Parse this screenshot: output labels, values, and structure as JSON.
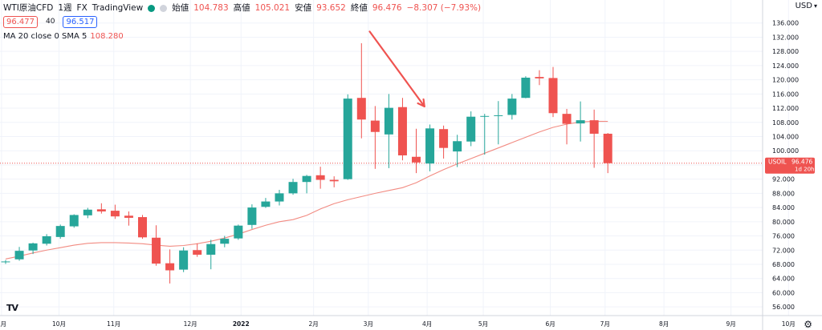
{
  "header": {
    "symbol": "WTI原油CFD",
    "interval": "1週",
    "exchange": "FX",
    "source": "TradingView",
    "ohlc": {
      "open_label": "始値",
      "open": "104.783",
      "high_label": "高値",
      "high": "105.021",
      "low_label": "安値",
      "low": "93.652",
      "close_label": "終値",
      "close": "96.476",
      "change": "−8.307 (−7.93%)"
    },
    "bid": "96.477",
    "spread": "40",
    "ask": "96.517",
    "indicator_label": "MA 20 close 0 SMA 5",
    "indicator_value": "108.280",
    "icons": [
      "eye-icon",
      "menu-icon"
    ]
  },
  "currency": "USD",
  "price_tag": {
    "symbol": "USOIL",
    "value": "96.476",
    "countdown": "1d 20h"
  },
  "colors": {
    "up": "#26a69a",
    "down": "#ef5350",
    "ma": "#f28b82",
    "arrow": "#ef5350"
  },
  "chart_data": {
    "type": "candlestick",
    "y_ticks": [
      "136.000",
      "132.000",
      "128.000",
      "124.000",
      "120.000",
      "116.000",
      "112.000",
      "108.000",
      "104.000",
      "100.000",
      "96.000",
      "92.000",
      "88.000",
      "84.000",
      "80.000",
      "76.000",
      "72.000",
      "68.000",
      "64.000",
      "60.000",
      "56.000"
    ],
    "ylim": [
      54,
      138
    ],
    "x_ticks": [
      {
        "label": "9月",
        "index": -0.3
      },
      {
        "label": "10月",
        "index": 3.9
      },
      {
        "label": "11月",
        "index": 7.9
      },
      {
        "label": "12月",
        "index": 13.5
      },
      {
        "label": "2022",
        "index": 17.2
      },
      {
        "label": "2月",
        "index": 22.5
      },
      {
        "label": "3月",
        "index": 26.5
      },
      {
        "label": "4月",
        "index": 30.8
      },
      {
        "label": "5月",
        "index": 34.9
      },
      {
        "label": "6月",
        "index": 39.8
      },
      {
        "label": "7月",
        "index": 43.8
      },
      {
        "label": "8月",
        "index": 48.1
      },
      {
        "label": "9月",
        "index": 53.0
      },
      {
        "label": "10月",
        "index": 57.2
      }
    ],
    "candles": [
      {
        "o": 68.7,
        "h": 69.2,
        "l": 68.1,
        "c": 68.8
      },
      {
        "o": 69.4,
        "h": 72.9,
        "l": 69.0,
        "c": 71.8
      },
      {
        "o": 71.9,
        "h": 74.1,
        "l": 70.9,
        "c": 73.9
      },
      {
        "o": 73.8,
        "h": 76.5,
        "l": 73.3,
        "c": 75.9
      },
      {
        "o": 75.7,
        "h": 79.2,
        "l": 75.2,
        "c": 78.8
      },
      {
        "o": 78.7,
        "h": 82.1,
        "l": 78.3,
        "c": 81.9
      },
      {
        "o": 81.8,
        "h": 83.9,
        "l": 81.0,
        "c": 83.4
      },
      {
        "o": 83.5,
        "h": 85.2,
        "l": 82.3,
        "c": 82.9
      },
      {
        "o": 83.1,
        "h": 84.8,
        "l": 80.8,
        "c": 81.5
      },
      {
        "o": 81.7,
        "h": 82.9,
        "l": 78.9,
        "c": 81.1
      },
      {
        "o": 81.3,
        "h": 81.9,
        "l": 75.2,
        "c": 75.6
      },
      {
        "o": 75.5,
        "h": 79.0,
        "l": 67.6,
        "c": 68.2
      },
      {
        "o": 68.3,
        "h": 72.2,
        "l": 62.6,
        "c": 66.3
      },
      {
        "o": 66.5,
        "h": 72.8,
        "l": 65.8,
        "c": 71.9
      },
      {
        "o": 72.0,
        "h": 73.9,
        "l": 70.1,
        "c": 70.7
      },
      {
        "o": 70.7,
        "h": 74.9,
        "l": 66.6,
        "c": 73.7
      },
      {
        "o": 73.8,
        "h": 76.0,
        "l": 72.8,
        "c": 75.2
      },
      {
        "o": 75.3,
        "h": 79.2,
        "l": 74.9,
        "c": 78.9
      },
      {
        "o": 79.1,
        "h": 84.9,
        "l": 78.0,
        "c": 84.0
      },
      {
        "o": 84.2,
        "h": 86.7,
        "l": 83.9,
        "c": 85.7
      },
      {
        "o": 85.7,
        "h": 89.0,
        "l": 84.6,
        "c": 88.0
      },
      {
        "o": 88.0,
        "h": 92.1,
        "l": 87.6,
        "c": 91.2
      },
      {
        "o": 91.2,
        "h": 93.2,
        "l": 88.0,
        "c": 92.9
      },
      {
        "o": 93.1,
        "h": 95.5,
        "l": 89.3,
        "c": 91.8
      },
      {
        "o": 91.8,
        "h": 92.8,
        "l": 89.7,
        "c": 91.4
      },
      {
        "o": 92.0,
        "h": 115.9,
        "l": 91.8,
        "c": 114.7
      },
      {
        "o": 114.9,
        "h": 130.3,
        "l": 103.5,
        "c": 108.8
      },
      {
        "o": 108.5,
        "h": 112.6,
        "l": 94.9,
        "c": 105.3
      },
      {
        "o": 104.6,
        "h": 116.0,
        "l": 95.1,
        "c": 112.1
      },
      {
        "o": 112.3,
        "h": 114.9,
        "l": 97.3,
        "c": 98.7
      },
      {
        "o": 98.3,
        "h": 106.2,
        "l": 93.7,
        "c": 96.7
      },
      {
        "o": 96.4,
        "h": 107.4,
        "l": 94.2,
        "c": 106.3
      },
      {
        "o": 106.1,
        "h": 107.1,
        "l": 97.8,
        "c": 100.8
      },
      {
        "o": 99.8,
        "h": 104.5,
        "l": 95.4,
        "c": 102.7
      },
      {
        "o": 102.6,
        "h": 111.1,
        "l": 101.3,
        "c": 109.6
      },
      {
        "o": 109.6,
        "h": 110.4,
        "l": 98.9,
        "c": 109.8
      },
      {
        "o": 109.9,
        "h": 114.0,
        "l": 101.8,
        "c": 110.0
      },
      {
        "o": 110.1,
        "h": 116.0,
        "l": 108.8,
        "c": 114.7
      },
      {
        "o": 114.9,
        "h": 121.0,
        "l": 114.8,
        "c": 120.6
      },
      {
        "o": 120.8,
        "h": 122.7,
        "l": 118.5,
        "c": 120.4
      },
      {
        "o": 120.5,
        "h": 123.6,
        "l": 109.5,
        "c": 110.6
      },
      {
        "o": 110.4,
        "h": 111.8,
        "l": 101.8,
        "c": 107.6
      },
      {
        "o": 107.7,
        "h": 113.9,
        "l": 102.6,
        "c": 108.6
      },
      {
        "o": 108.6,
        "h": 111.6,
        "l": 95.2,
        "c": 104.8
      },
      {
        "o": 104.8,
        "h": 105.0,
        "l": 93.7,
        "c": 96.5
      }
    ],
    "ma": [
      69.5,
      70.3,
      71.2,
      72.0,
      72.7,
      73.4,
      73.9,
      74.1,
      74.1,
      74.0,
      73.8,
      73.4,
      73.1,
      73.3,
      73.8,
      74.5,
      75.4,
      76.5,
      77.8,
      79.0,
      80.0,
      80.6,
      81.8,
      83.6,
      85.1,
      86.2,
      87.1,
      88.0,
      88.8,
      89.6,
      91.0,
      92.9,
      94.7,
      96.3,
      97.8,
      99.3,
      100.8,
      102.3,
      103.8,
      105.3,
      106.6,
      107.5,
      108.1,
      108.3,
      108.28
    ],
    "arrow": {
      "from": [
        26.6,
        133.6
      ],
      "to": [
        30.6,
        112.5
      ]
    }
  }
}
